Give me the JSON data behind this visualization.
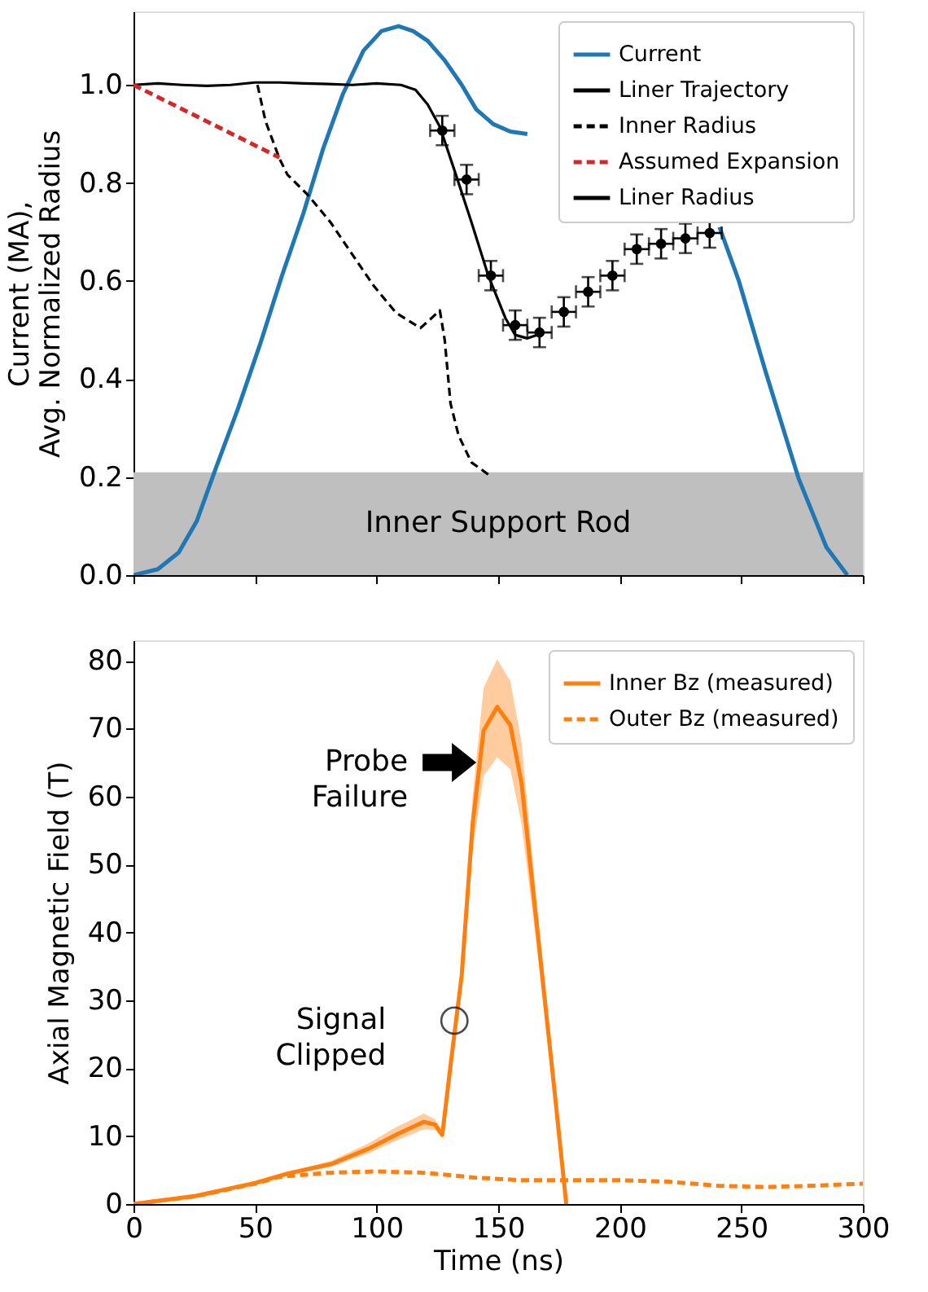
{
  "chart_data": [
    {
      "type": "line",
      "ylabel": "Current (MA),\nAvg. Normalized Radius",
      "xlim": [
        0,
        300
      ],
      "xticks": [
        0,
        50,
        100,
        150,
        200,
        250,
        300
      ],
      "ylim": [
        0,
        1.15
      ],
      "yticks": [
        {
          "value": 0,
          "label": "0.0"
        },
        0.2,
        0.4,
        0.6,
        0.8,
        {
          "value": 1,
          "label": "1.0"
        }
      ],
      "tick_labels": "y",
      "legend": "top right",
      "grid": false,
      "bands": [
        {
          "axis": "y",
          "from": 0,
          "to": 0.21,
          "label": "Inner Support Rod",
          "color": "#bfbfbf"
        }
      ],
      "series": [
        {
          "name": "Current",
          "color": "#1f77b4",
          "line_style": "solid",
          "x": [
            0,
            10,
            18.6,
            26,
            34,
            43,
            52,
            61,
            70,
            78,
            86,
            94.6,
            102,
            109,
            115,
            121,
            128,
            135,
            141,
            148,
            155,
            162,
            175,
            200,
            225,
            241,
            249,
            260,
            273.5,
            285,
            293.6
          ],
          "values": [
            0,
            0.012,
            0.046,
            0.11,
            0.22,
            0.34,
            0.47,
            0.61,
            0.74,
            0.87,
            0.98,
            1.07,
            1.11,
            1.12,
            1.11,
            1.09,
            1.05,
            1.0,
            0.95,
            0.92,
            0.905,
            0.9,
            null,
            null,
            null,
            0.71,
            0.6,
            0.415,
            0.198,
            0.057,
            0
          ]
        },
        {
          "name": "Liner Trajectory",
          "color": "#000000",
          "line_style": "solid",
          "x": [
            0,
            10,
            20,
            30,
            40,
            50,
            60,
            70,
            80,
            90,
            100,
            110,
            116,
            121,
            126,
            132.6,
            139,
            146,
            153,
            157,
            162,
            166
          ],
          "values": [
            1.0,
            1.003,
            1.0,
            0.998,
            1.0,
            1.005,
            1.005,
            1.003,
            1.002,
            1.0,
            1.003,
            1.0,
            0.99,
            0.96,
            0.915,
            0.817,
            0.72,
            0.61,
            0.524,
            0.49,
            0.483,
            0.49
          ]
        },
        {
          "name": "Inner Radius",
          "color": "#000000",
          "line_style": "dashed",
          "x": [
            51,
            54.3,
            60,
            63.3,
            72,
            81,
            90,
            99,
            108,
            118,
            122.5,
            126,
            128,
            130.4,
            133.7,
            139,
            146
          ],
          "values": [
            1.0,
            0.926,
            0.85,
            0.817,
            0.774,
            0.72,
            0.654,
            0.589,
            0.535,
            0.504,
            0.524,
            0.54,
            0.48,
            0.35,
            0.285,
            0.23,
            0.205
          ]
        },
        {
          "name": "Assumed Expansion",
          "color": "#d62728",
          "line_style": "dashed",
          "x": [
            0,
            60
          ],
          "values": [
            1.0,
            0.852
          ]
        },
        {
          "name": "Liner Radius",
          "type": "scatter",
          "marker": "circle",
          "color": "#000000",
          "x": [
            127,
            137,
            147,
            157,
            167,
            177,
            187,
            197,
            207,
            217,
            227,
            237
          ],
          "values": [
            0.907,
            0.807,
            0.611,
            0.51,
            0.495,
            0.537,
            0.578,
            0.611,
            0.665,
            0.676,
            0.687,
            0.698
          ],
          "errors": [
            0.03,
            0.03,
            0.03,
            0.03,
            0.03,
            0.03,
            0.03,
            0.03,
            0.03,
            0.03,
            0.03,
            0.03
          ],
          "xerrors": [
            5,
            5,
            5,
            5,
            5,
            5,
            5,
            5,
            5,
            5,
            5,
            5
          ]
        }
      ]
    },
    {
      "type": "line",
      "xlabel": "Time (ns)",
      "ylabel": "Axial Magnetic Field (T)",
      "xlim": [
        0,
        300
      ],
      "xticks": [
        0,
        50,
        100,
        150,
        200,
        250,
        300
      ],
      "ylim": [
        0,
        83
      ],
      "yticks": [
        0,
        10,
        20,
        30,
        40,
        50,
        60,
        70,
        80
      ],
      "legend": "top right",
      "grid": false,
      "annotations": [
        {
          "text": "Probe\nFailure",
          "x": 141,
          "y": 65
        },
        {
          "text": "Signal\nClipped",
          "x": 132,
          "y": 27
        }
      ],
      "series": [
        {
          "name": "Inner Bz (measured)",
          "color": "#ff7f0e",
          "line_style": "solid",
          "x": [
            0,
            25.7,
            50,
            63.6,
            81.5,
            97,
            108,
            119.4,
            124,
            127,
            130.6,
            135,
            139.5,
            144,
            149.6,
            155,
            159.6,
            166,
            173,
            178
          ],
          "values": [
            0,
            1.2,
            3.1,
            4.5,
            5.9,
            8.2,
            10.2,
            12.1,
            11.7,
            10.2,
            21,
            33.7,
            56,
            69.7,
            73.2,
            70.5,
            62,
            40.7,
            17.2,
            0
          ],
          "lower": [
            0,
            1.2,
            3.1,
            4.3,
            5.5,
            7.5,
            9.3,
            11,
            10.9,
            9.7,
            20,
            32,
            52,
            63,
            65.8,
            64,
            56,
            37.5,
            15.5,
            0
          ],
          "upper": [
            0,
            1.2,
            3.1,
            4.7,
            6.4,
            9,
            11.3,
            13.3,
            12.5,
            10.8,
            22,
            35.5,
            60,
            76,
            80.2,
            77,
            68,
            44,
            19,
            0
          ]
        },
        {
          "name": "Outer Bz (measured)",
          "color": "#ff7f0e",
          "line_style": "dashed",
          "x": [
            0,
            25,
            50,
            60,
            80,
            100,
            120,
            140,
            160,
            180,
            200,
            220,
            240,
            260,
            280,
            300
          ],
          "values": [
            0,
            1.1,
            3.0,
            4.0,
            4.6,
            4.8,
            4.6,
            3.9,
            3.5,
            3.5,
            3.5,
            3.3,
            2.7,
            2.5,
            2.7,
            3.0
          ]
        }
      ]
    }
  ]
}
